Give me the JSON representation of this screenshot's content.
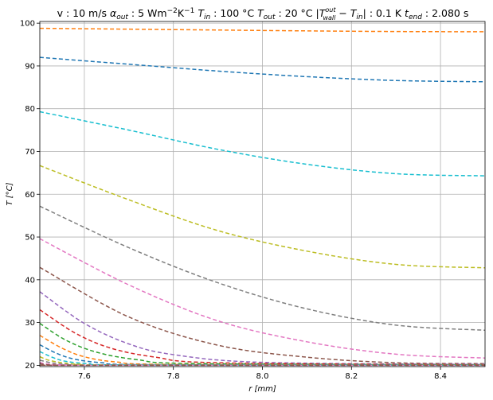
{
  "chart_data": {
    "type": "line",
    "title": {
      "part1": "v : 10 m/s  ",
      "alpha": "α",
      "alpha_sub": "out",
      "part2": " : 5 Wm",
      "exp": "−2",
      "part3": "K",
      "exp2": "−1",
      "part4": "  ",
      "tin": "T",
      "tin_sub": "in",
      "part5": " : 100 °C  ",
      "tout": "T",
      "tout_sub": "out",
      "part6": " : 20 °C  |",
      "twall": "T",
      "twall_sup": "out",
      "twall_sub": "wall",
      "part7": " − ",
      "tin2": "T",
      "tin2_sub": "in",
      "part8": "| : 0.1 K  ",
      "tend": "t",
      "tend_sub": "end",
      "part9": " : 2.080 s"
    },
    "xlabel": "r [mm]",
    "ylabel": "T [°C]",
    "xlim": [
      7.5,
      8.5
    ],
    "ylim": [
      19.7,
      100.4
    ],
    "xticks": [
      7.6,
      7.8,
      8.0,
      8.2,
      8.4
    ],
    "xtick_labels": [
      "7.6",
      "7.8",
      "8.0",
      "8.2",
      "8.4"
    ],
    "yticks": [
      20,
      30,
      40,
      50,
      60,
      70,
      80,
      90,
      100
    ],
    "ytick_labels": [
      "20",
      "30",
      "40",
      "50",
      "60",
      "70",
      "80",
      "90",
      "100"
    ],
    "grid": true,
    "line_style": "dashed",
    "series": [
      {
        "color": "#ff7f0e",
        "x": [
          7.5,
          7.7,
          7.9,
          8.1,
          8.3,
          8.5
        ],
        "y": [
          98.8,
          98.6,
          98.4,
          98.2,
          98.05,
          98.0
        ]
      },
      {
        "color": "#1f77b4",
        "x": [
          7.5,
          7.7,
          7.9,
          8.1,
          8.3,
          8.5
        ],
        "y": [
          92.0,
          90.4,
          88.8,
          87.5,
          86.6,
          86.3
        ]
      },
      {
        "color": "#17becf",
        "x": [
          7.5,
          7.7,
          7.9,
          8.1,
          8.3,
          8.5
        ],
        "y": [
          79.3,
          75.0,
          70.5,
          67.0,
          64.8,
          64.3
        ]
      },
      {
        "color": "#bcbd22",
        "x": [
          7.5,
          7.7,
          7.9,
          8.1,
          8.3,
          8.5
        ],
        "y": [
          66.7,
          58.7,
          51.5,
          46.7,
          43.6,
          42.8
        ]
      },
      {
        "color": "#7f7f7f",
        "x": [
          7.5,
          7.7,
          7.9,
          8.1,
          8.3,
          8.5
        ],
        "y": [
          57.2,
          47.5,
          39.3,
          33.2,
          29.4,
          28.2
        ]
      },
      {
        "color": "#e377c2",
        "x": [
          7.5,
          7.7,
          7.9,
          8.1,
          8.3,
          8.5
        ],
        "y": [
          49.6,
          38.8,
          30.4,
          25.5,
          22.6,
          21.7
        ]
      },
      {
        "color": "#8c564b",
        "x": [
          7.5,
          7.7,
          7.9,
          8.1,
          8.3,
          8.5
        ],
        "y": [
          42.9,
          31.3,
          24.7,
          21.9,
          20.6,
          20.4
        ]
      },
      {
        "color": "#9467bd",
        "x": [
          7.5,
          7.6,
          7.7,
          7.8,
          8.0,
          8.5
        ],
        "y": [
          37.2,
          29.8,
          25.0,
          22.5,
          20.7,
          20.2
        ]
      },
      {
        "color": "#d62728",
        "x": [
          7.5,
          7.58,
          7.66,
          7.76,
          7.9,
          8.5
        ],
        "y": [
          33.0,
          27.5,
          24.0,
          21.9,
          20.6,
          20.1
        ]
      },
      {
        "color": "#2ca02c",
        "x": [
          7.5,
          7.56,
          7.63,
          7.72,
          7.85,
          8.5
        ],
        "y": [
          29.8,
          25.8,
          23.0,
          21.3,
          20.4,
          20.1
        ]
      },
      {
        "color": "#ff7f0e",
        "x": [
          7.5,
          7.55,
          7.6,
          7.67,
          7.8,
          8.5
        ],
        "y": [
          27.0,
          24.0,
          22.0,
          20.8,
          20.2,
          20.05
        ]
      },
      {
        "color": "#1f77b4",
        "x": [
          7.5,
          7.54,
          7.58,
          7.64,
          7.75,
          8.5
        ],
        "y": [
          24.8,
          22.7,
          21.4,
          20.6,
          20.15,
          20.05
        ]
      },
      {
        "color": "#17becf",
        "x": [
          7.5,
          7.53,
          7.56,
          7.61,
          7.7,
          8.5
        ],
        "y": [
          23.2,
          21.8,
          20.9,
          20.4,
          20.1,
          20.03
        ]
      },
      {
        "color": "#bcbd22",
        "x": [
          7.5,
          7.52,
          7.55,
          7.59,
          7.66,
          8.5
        ],
        "y": [
          22.0,
          21.2,
          20.6,
          20.25,
          20.08,
          20.02
        ]
      },
      {
        "color": "#7f7f7f",
        "x": [
          7.5,
          7.52,
          7.54,
          7.57,
          7.62,
          8.5
        ],
        "y": [
          21.2,
          20.7,
          20.4,
          20.15,
          20.05,
          20.01
        ]
      },
      {
        "color": "#e377c2",
        "x": [
          7.5,
          7.51,
          7.53,
          7.56,
          7.6,
          8.5
        ],
        "y": [
          20.7,
          20.4,
          20.2,
          20.08,
          20.03,
          20.0
        ]
      },
      {
        "color": "#8c564b",
        "x": [
          7.5,
          7.51,
          7.52,
          7.54,
          7.58,
          8.5
        ],
        "y": [
          20.4,
          20.2,
          20.1,
          20.04,
          20.01,
          20.0
        ]
      }
    ]
  }
}
